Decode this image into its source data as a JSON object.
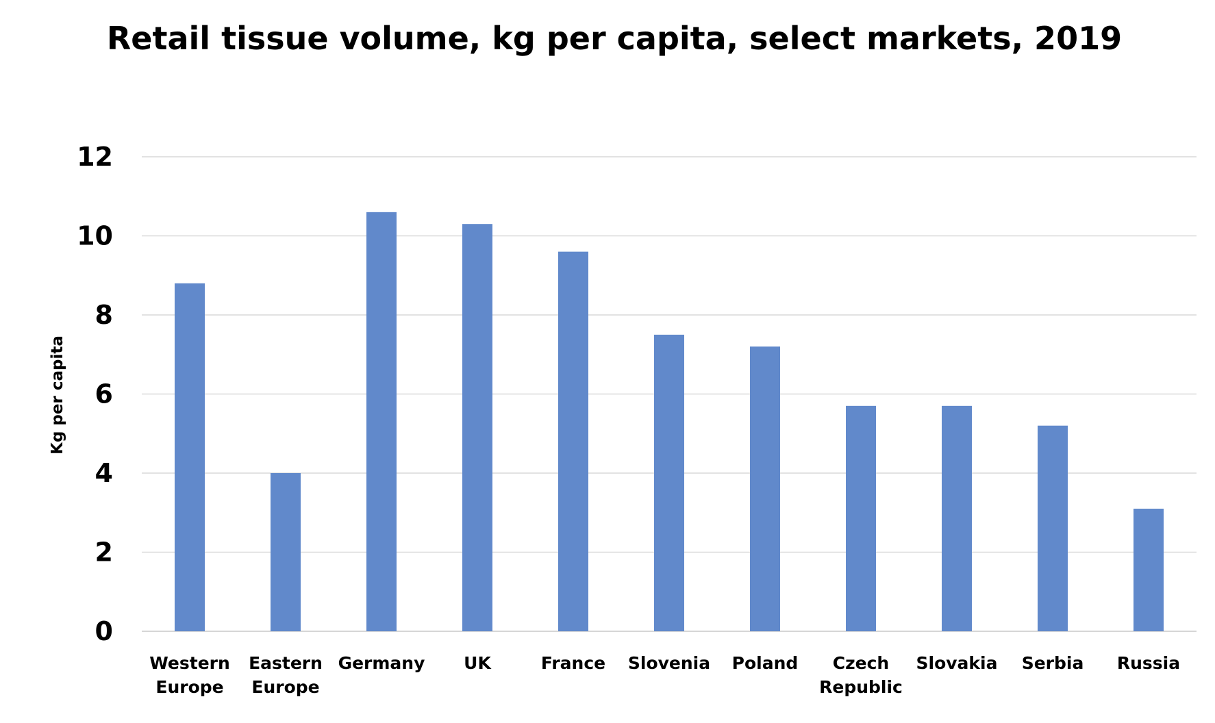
{
  "chart_data": {
    "type": "bar",
    "title": "Retail tissue volume, kg per capita, select markets, 2019",
    "ylabel": "Kg per capita",
    "xlabel": "",
    "categories": [
      [
        "Western",
        "Europe"
      ],
      [
        "Eastern",
        "Europe"
      ],
      [
        "Germany"
      ],
      [
        "UK"
      ],
      [
        "France"
      ],
      [
        "Slovenia"
      ],
      [
        "Poland"
      ],
      [
        "Czech",
        "Republic"
      ],
      [
        "Slovakia"
      ],
      [
        "Serbia"
      ],
      [
        "Russia"
      ]
    ],
    "values": [
      8.8,
      4.0,
      10.6,
      10.3,
      9.6,
      7.5,
      7.2,
      5.7,
      5.7,
      5.2,
      3.1
    ],
    "ylim": [
      0,
      12
    ],
    "yticks": [
      "0",
      "2",
      "4",
      "6",
      "8",
      "10",
      "12"
    ],
    "grid": true,
    "bar_color": "#6189cb"
  }
}
